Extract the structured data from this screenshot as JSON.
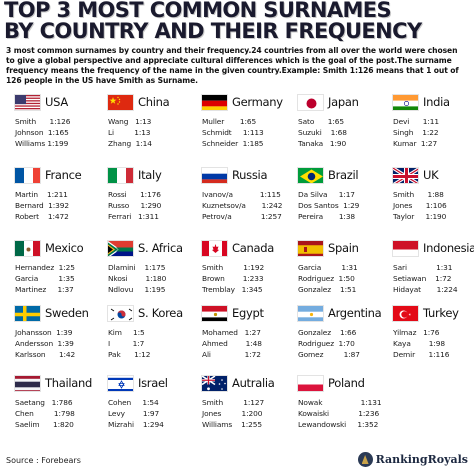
{
  "title": {
    "line1": "TOP 3 MOST COMMON SURNAMES",
    "line2": "BY COUNTRY AND THEIR FREQUENCY"
  },
  "intro": "3 most common surnames by country and their frequency.24 countries from all over the world were chosen to give a global perspective and appreciate cultural differences which is the goal of the post.The surname frequency means the frequency of the name in the given country.Example: Smith 1:126 means that 1 out of 126 people in the US have Smith as Surname.",
  "countries": [
    {
      "name": "USA",
      "flag": "flag-usa-icon",
      "rows": [
        "Smith      1:126",
        "Johnson  1:165",
        "Williams 1:199"
      ]
    },
    {
      "name": "China",
      "flag": "flag-china-icon",
      "rows": [
        "Wang   1:13",
        "Li         1:13",
        "Zhang  1:14"
      ]
    },
    {
      "name": "Germany",
      "flag": "flag-germany-icon",
      "rows": [
        "Muller       1:65",
        "Schmidt     1:113",
        "Schneider  1:185"
      ]
    },
    {
      "name": "Japan",
      "flag": "flag-japan-icon",
      "rows": [
        "Sato      1:65",
        "Suzuki    1:68",
        "Tanaka   1:90"
      ]
    },
    {
      "name": "India",
      "flag": "flag-india-icon",
      "rows": [
        "Devi      1:11",
        "Singh    1:22",
        "Kumar  1:27"
      ]
    },
    {
      "name": "France",
      "flag": "flag-france-icon",
      "rows": [
        "Martin    1:211",
        "Bernard  1:392",
        "Robert    1:472"
      ]
    },
    {
      "name": "Italy",
      "flag": "flag-italy-icon",
      "rows": [
        "Rossi      1:176",
        "Russo     1:290",
        "Ferrari   1:311"
      ]
    },
    {
      "name": "Russia",
      "flag": "flag-russia-icon",
      "rows": [
        "Ivanov/a            1:115",
        "Kuznetsov/a       1:242",
        "Petrov/a             1:257"
      ]
    },
    {
      "name": "Brazil",
      "flag": "flag-brazil-icon",
      "rows": [
        "Da Silva     1:17",
        "Dos Santos  1:29",
        "Pereira       1:38"
      ]
    },
    {
      "name": "UK",
      "flag": "flag-uk-icon",
      "rows": [
        "Smith      1:88",
        "Jones      1:106",
        "Taylor     1:190"
      ]
    },
    {
      "name": "Mexico",
      "flag": "flag-mexico-icon",
      "rows": [
        "Hernandez  1:25",
        "Garcia         1:35",
        "Martinez     1:37"
      ]
    },
    {
      "name": "S. Africa",
      "flag": "flag-south-africa-icon",
      "rows": [
        "Dlamini    1:175",
        "Nkosi        1:180",
        "Ndlovu     1:195"
      ]
    },
    {
      "name": "Canada",
      "flag": "flag-canada-icon",
      "rows": [
        "Smith         1:192",
        "Brown        1:233",
        "Tremblay   1:345"
      ]
    },
    {
      "name": "Spain",
      "flag": "flag-spain-icon",
      "rows": [
        "Garcia         1:31",
        "Rodriguez  1:50",
        "Gonzalez    1:51"
      ]
    },
    {
      "name": "Indonesia",
      "flag": "flag-indonesia-icon",
      "rows": [
        "Sari             1:31",
        "Setiawan    1:72",
        "Hidayat       1:224"
      ]
    },
    {
      "name": "Sweden",
      "flag": "flag-sweden-icon",
      "rows": [
        "Johansson  1:39",
        "Andersson  1:39",
        "Karlsson      1:42"
      ]
    },
    {
      "name": "S. Korea",
      "flag": "flag-south-korea-icon",
      "rows": [
        "Kim     1:5",
        "I          1:7",
        "Pak      1:12"
      ]
    },
    {
      "name": "Egypt",
      "flag": "flag-egypt-icon",
      "rows": [
        "Mohamed   1:27",
        "Ahmed        1:48",
        "Ali               1:72"
      ]
    },
    {
      "name": "Argentina",
      "flag": "flag-argentina-icon",
      "rows": [
        "Gonzalez    1:66",
        "Rodriguez  1:70",
        "Gomez         1:87"
      ]
    },
    {
      "name": "Turkey",
      "flag": "flag-turkey-icon",
      "rows": [
        "Yilmaz   1:76",
        "Kaya        1:98",
        "Demir      1:116"
      ]
    },
    {
      "name": "Thailand",
      "flag": "flag-thailand-icon",
      "rows": [
        "Saetang   1:786",
        "Chen         1:798",
        "Saelim      1:820"
      ]
    },
    {
      "name": "Israel",
      "flag": "flag-israel-icon",
      "rows": [
        "Cohen     1:54",
        "Levy        1:97",
        "Mizrahi    1:294"
      ]
    },
    {
      "name": "Autralia",
      "flag": "flag-australia-icon",
      "rows": [
        "Smith         1:127",
        "Jones         1:200",
        "Williams    1:255"
      ]
    },
    {
      "name": "Poland",
      "flag": "flag-poland-icon",
      "rows": [
        "Nowak                 1:131",
        "Kowaiski             1:236",
        "Lewandowski     1:352"
      ]
    }
  ],
  "footer": {
    "source": "Source : Forebears",
    "brand": "RankingRoyals",
    "brand_logo": "ranking-royals-logo-icon"
  }
}
